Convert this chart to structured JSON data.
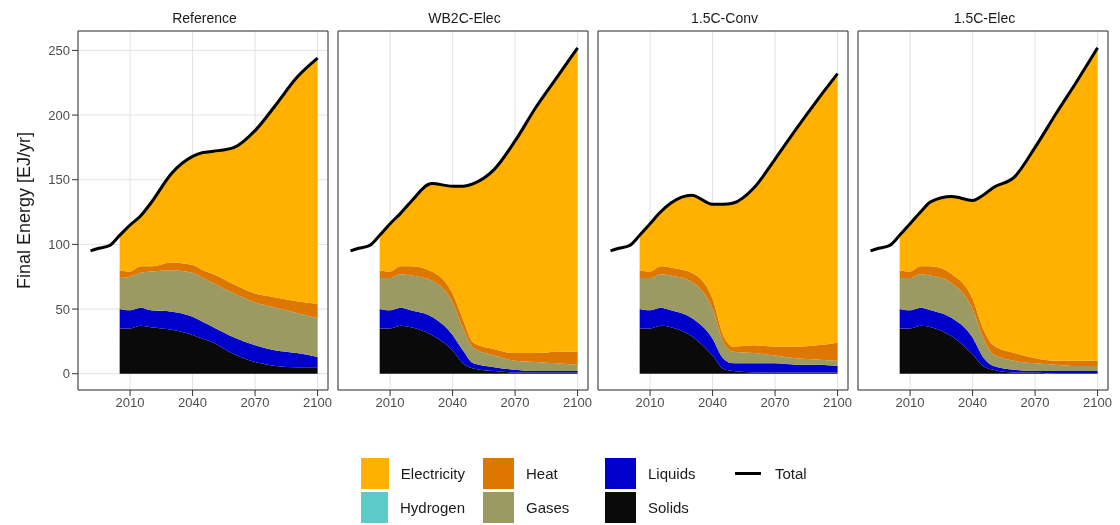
{
  "chart_data": [
    {
      "type": "area",
      "title": "Reference",
      "ylabel": "Final Energy  [EJ/yr]",
      "stacked": true,
      "legend": "bottom",
      "grid": true,
      "xlim": [
        1985,
        2105
      ],
      "xticks": [
        2010,
        2040,
        2070,
        2100
      ],
      "ylim": [
        -12.6,
        265
      ],
      "yticks": [
        0,
        50,
        100,
        150,
        200,
        250
      ],
      "x": [
        2005,
        2010,
        2015,
        2020,
        2030,
        2040,
        2045,
        2050,
        2060,
        2070,
        2080,
        2090,
        2100
      ],
      "series": [
        {
          "name": "Solids",
          "color": "#0a0a0a",
          "values": [
            35,
            35,
            37,
            36,
            34,
            30,
            27,
            24,
            15,
            9,
            6,
            5,
            5
          ]
        },
        {
          "name": "Liquids",
          "color": "#0000cc",
          "values": [
            15,
            14,
            14,
            13,
            14,
            14,
            13,
            12,
            13,
            13,
            12,
            11,
            8
          ]
        },
        {
          "name": "Gases",
          "color": "#9a9a62",
          "values": [
            24,
            26,
            27,
            30,
            32,
            34,
            34,
            34,
            34,
            33,
            33,
            31,
            30
          ]
        },
        {
          "name": "Heat",
          "color": "#dd7700",
          "values": [
            6,
            4,
            5,
            4,
            6,
            6,
            6,
            7,
            7,
            7,
            8,
            9,
            11
          ]
        },
        {
          "name": "Hydrogen",
          "color": "#5ecbcb",
          "values": [
            null,
            null,
            null,
            null,
            null,
            null,
            null,
            null,
            null,
            null,
            null,
            null,
            null
          ]
        },
        {
          "name": "Electricity",
          "color": "#ffb000",
          "values": [
            27,
            36,
            39,
            49,
            69,
            84,
            91,
            95,
            106,
            126,
            149,
            173,
            190
          ]
        },
        {
          "name": "Total",
          "type": "line",
          "color": "#000000",
          "x": [
            1991,
            1995,
            2000,
            2005,
            2010,
            2015,
            2020,
            2030,
            2040,
            2045,
            2050,
            2060,
            2070,
            2080,
            2090,
            2100
          ],
          "values": [
            95,
            97,
            99,
            107,
            115,
            122,
            132,
            155,
            168,
            171,
            172,
            175,
            188,
            208,
            229,
            244
          ]
        }
      ]
    },
    {
      "type": "area",
      "title": "WB2C-Elec",
      "stacked": true,
      "grid": true,
      "tick_labels": "x",
      "xlim": [
        1985,
        2105
      ],
      "xticks": [
        2010,
        2040,
        2070,
        2100
      ],
      "ylim": [
        -12.6,
        265
      ],
      "yticks": [
        0,
        50,
        100,
        150,
        200,
        250
      ],
      "x": [
        2005,
        2010,
        2015,
        2020,
        2030,
        2040,
        2045,
        2050,
        2060,
        2070,
        2080,
        2090,
        2100
      ],
      "series": [
        {
          "color": "#0a0a0a",
          "values": [
            35,
            35,
            37,
            36,
            30,
            18,
            8,
            4,
            2,
            1,
            1,
            1,
            1
          ]
        },
        {
          "color": "#0000cc",
          "values": [
            15,
            14,
            14,
            13,
            14,
            12,
            10,
            4,
            3,
            2,
            1,
            1,
            1
          ]
        },
        {
          "color": "#9a9a62",
          "values": [
            24,
            25,
            26,
            27,
            28,
            25,
            17,
            12,
            9,
            7,
            7,
            6,
            5
          ]
        },
        {
          "color": "#dd7700",
          "values": [
            6,
            5,
            6,
            7,
            7,
            7,
            7,
            4,
            5,
            6,
            7,
            9,
            10
          ]
        },
        {
          "color": "#ffb000",
          "values": [
            27,
            37,
            41,
            50,
            68,
            83,
            103,
            123,
            139,
            164,
            190,
            212,
            235
          ]
        },
        {
          "type": "line",
          "color": "#000000",
          "x": [
            1991,
            1995,
            2000,
            2005,
            2010,
            2015,
            2020,
            2030,
            2040,
            2045,
            2050,
            2060,
            2070,
            2080,
            2090,
            2100
          ],
          "values": [
            95,
            97,
            99,
            107,
            116,
            124,
            133,
            147,
            145,
            145,
            147,
            158,
            180,
            206,
            229,
            252
          ]
        }
      ]
    },
    {
      "type": "area",
      "title": "1.5C-Conv",
      "stacked": true,
      "grid": true,
      "tick_labels": "x",
      "xlim": [
        1985,
        2105
      ],
      "xticks": [
        2010,
        2040,
        2070,
        2100
      ],
      "ylim": [
        -12.6,
        265
      ],
      "yticks": [
        0,
        50,
        100,
        150,
        200,
        250
      ],
      "x": [
        2005,
        2010,
        2015,
        2020,
        2030,
        2040,
        2045,
        2050,
        2060,
        2070,
        2080,
        2090,
        2100
      ],
      "series": [
        {
          "color": "#0a0a0a",
          "values": [
            35,
            35,
            37,
            36,
            29,
            14,
            4,
            2,
            1,
            1,
            1,
            1,
            1
          ]
        },
        {
          "color": "#0000cc",
          "values": [
            15,
            14,
            14,
            13,
            14,
            13,
            8,
            6,
            7,
            7,
            6,
            6,
            5
          ]
        },
        {
          "color": "#9a9a62",
          "values": [
            24,
            25,
            26,
            27,
            28,
            23,
            13,
            9,
            8,
            6,
            5,
            4,
            4
          ]
        },
        {
          "color": "#dd7700",
          "values": [
            6,
            5,
            6,
            6,
            7,
            8,
            5,
            4,
            6,
            7,
            9,
            11,
            14
          ]
        },
        {
          "color": "#ffb000",
          "values": [
            27,
            37,
            42,
            50,
            60,
            73,
            101,
            111,
            122,
            145,
            168,
            189,
            208
          ]
        },
        {
          "type": "line",
          "color": "#000000",
          "x": [
            1991,
            1995,
            2000,
            2005,
            2010,
            2015,
            2020,
            2030,
            2040,
            2045,
            2050,
            2060,
            2070,
            2080,
            2090,
            2100
          ],
          "values": [
            95,
            97,
            99,
            107,
            116,
            125,
            132,
            138,
            131,
            131,
            132,
            144,
            166,
            189,
            211,
            232
          ]
        }
      ]
    },
    {
      "type": "area",
      "title": "1.5C-Elec",
      "stacked": true,
      "grid": true,
      "tick_labels": "x",
      "xlim": [
        1985,
        2105
      ],
      "xticks": [
        2010,
        2040,
        2070,
        2100
      ],
      "ylim": [
        -12.6,
        265
      ],
      "yticks": [
        0,
        50,
        100,
        150,
        200,
        250
      ],
      "x": [
        2005,
        2010,
        2015,
        2020,
        2030,
        2040,
        2045,
        2050,
        2060,
        2070,
        2080,
        2090,
        2100
      ],
      "series": [
        {
          "color": "#0a0a0a",
          "values": [
            35,
            35,
            37,
            36,
            29,
            15,
            6,
            3,
            1,
            1,
            0,
            0,
            0
          ]
        },
        {
          "color": "#0000cc",
          "values": [
            15,
            14,
            14,
            13,
            14,
            13,
            7,
            3,
            2,
            1,
            2,
            2,
            2
          ]
        },
        {
          "color": "#9a9a62",
          "values": [
            24,
            25,
            26,
            27,
            27,
            22,
            15,
            9,
            7,
            6,
            5,
            4,
            4
          ]
        },
        {
          "color": "#dd7700",
          "values": [
            6,
            5,
            6,
            7,
            7,
            8,
            7,
            7,
            6,
            4,
            3,
            4,
            4
          ]
        },
        {
          "color": "#ffb000",
          "values": [
            27,
            37,
            42,
            50,
            60,
            76,
            103,
            122,
            136,
            163,
            191,
            216,
            242
          ]
        },
        {
          "type": "line",
          "color": "#000000",
          "x": [
            1991,
            1995,
            2000,
            2005,
            2010,
            2015,
            2020,
            2030,
            2040,
            2045,
            2050,
            2060,
            2070,
            2080,
            2090,
            2100
          ],
          "values": [
            95,
            97,
            99,
            107,
            116,
            125,
            133,
            137,
            134,
            138,
            144,
            152,
            175,
            201,
            226,
            252
          ]
        }
      ]
    }
  ]
}
